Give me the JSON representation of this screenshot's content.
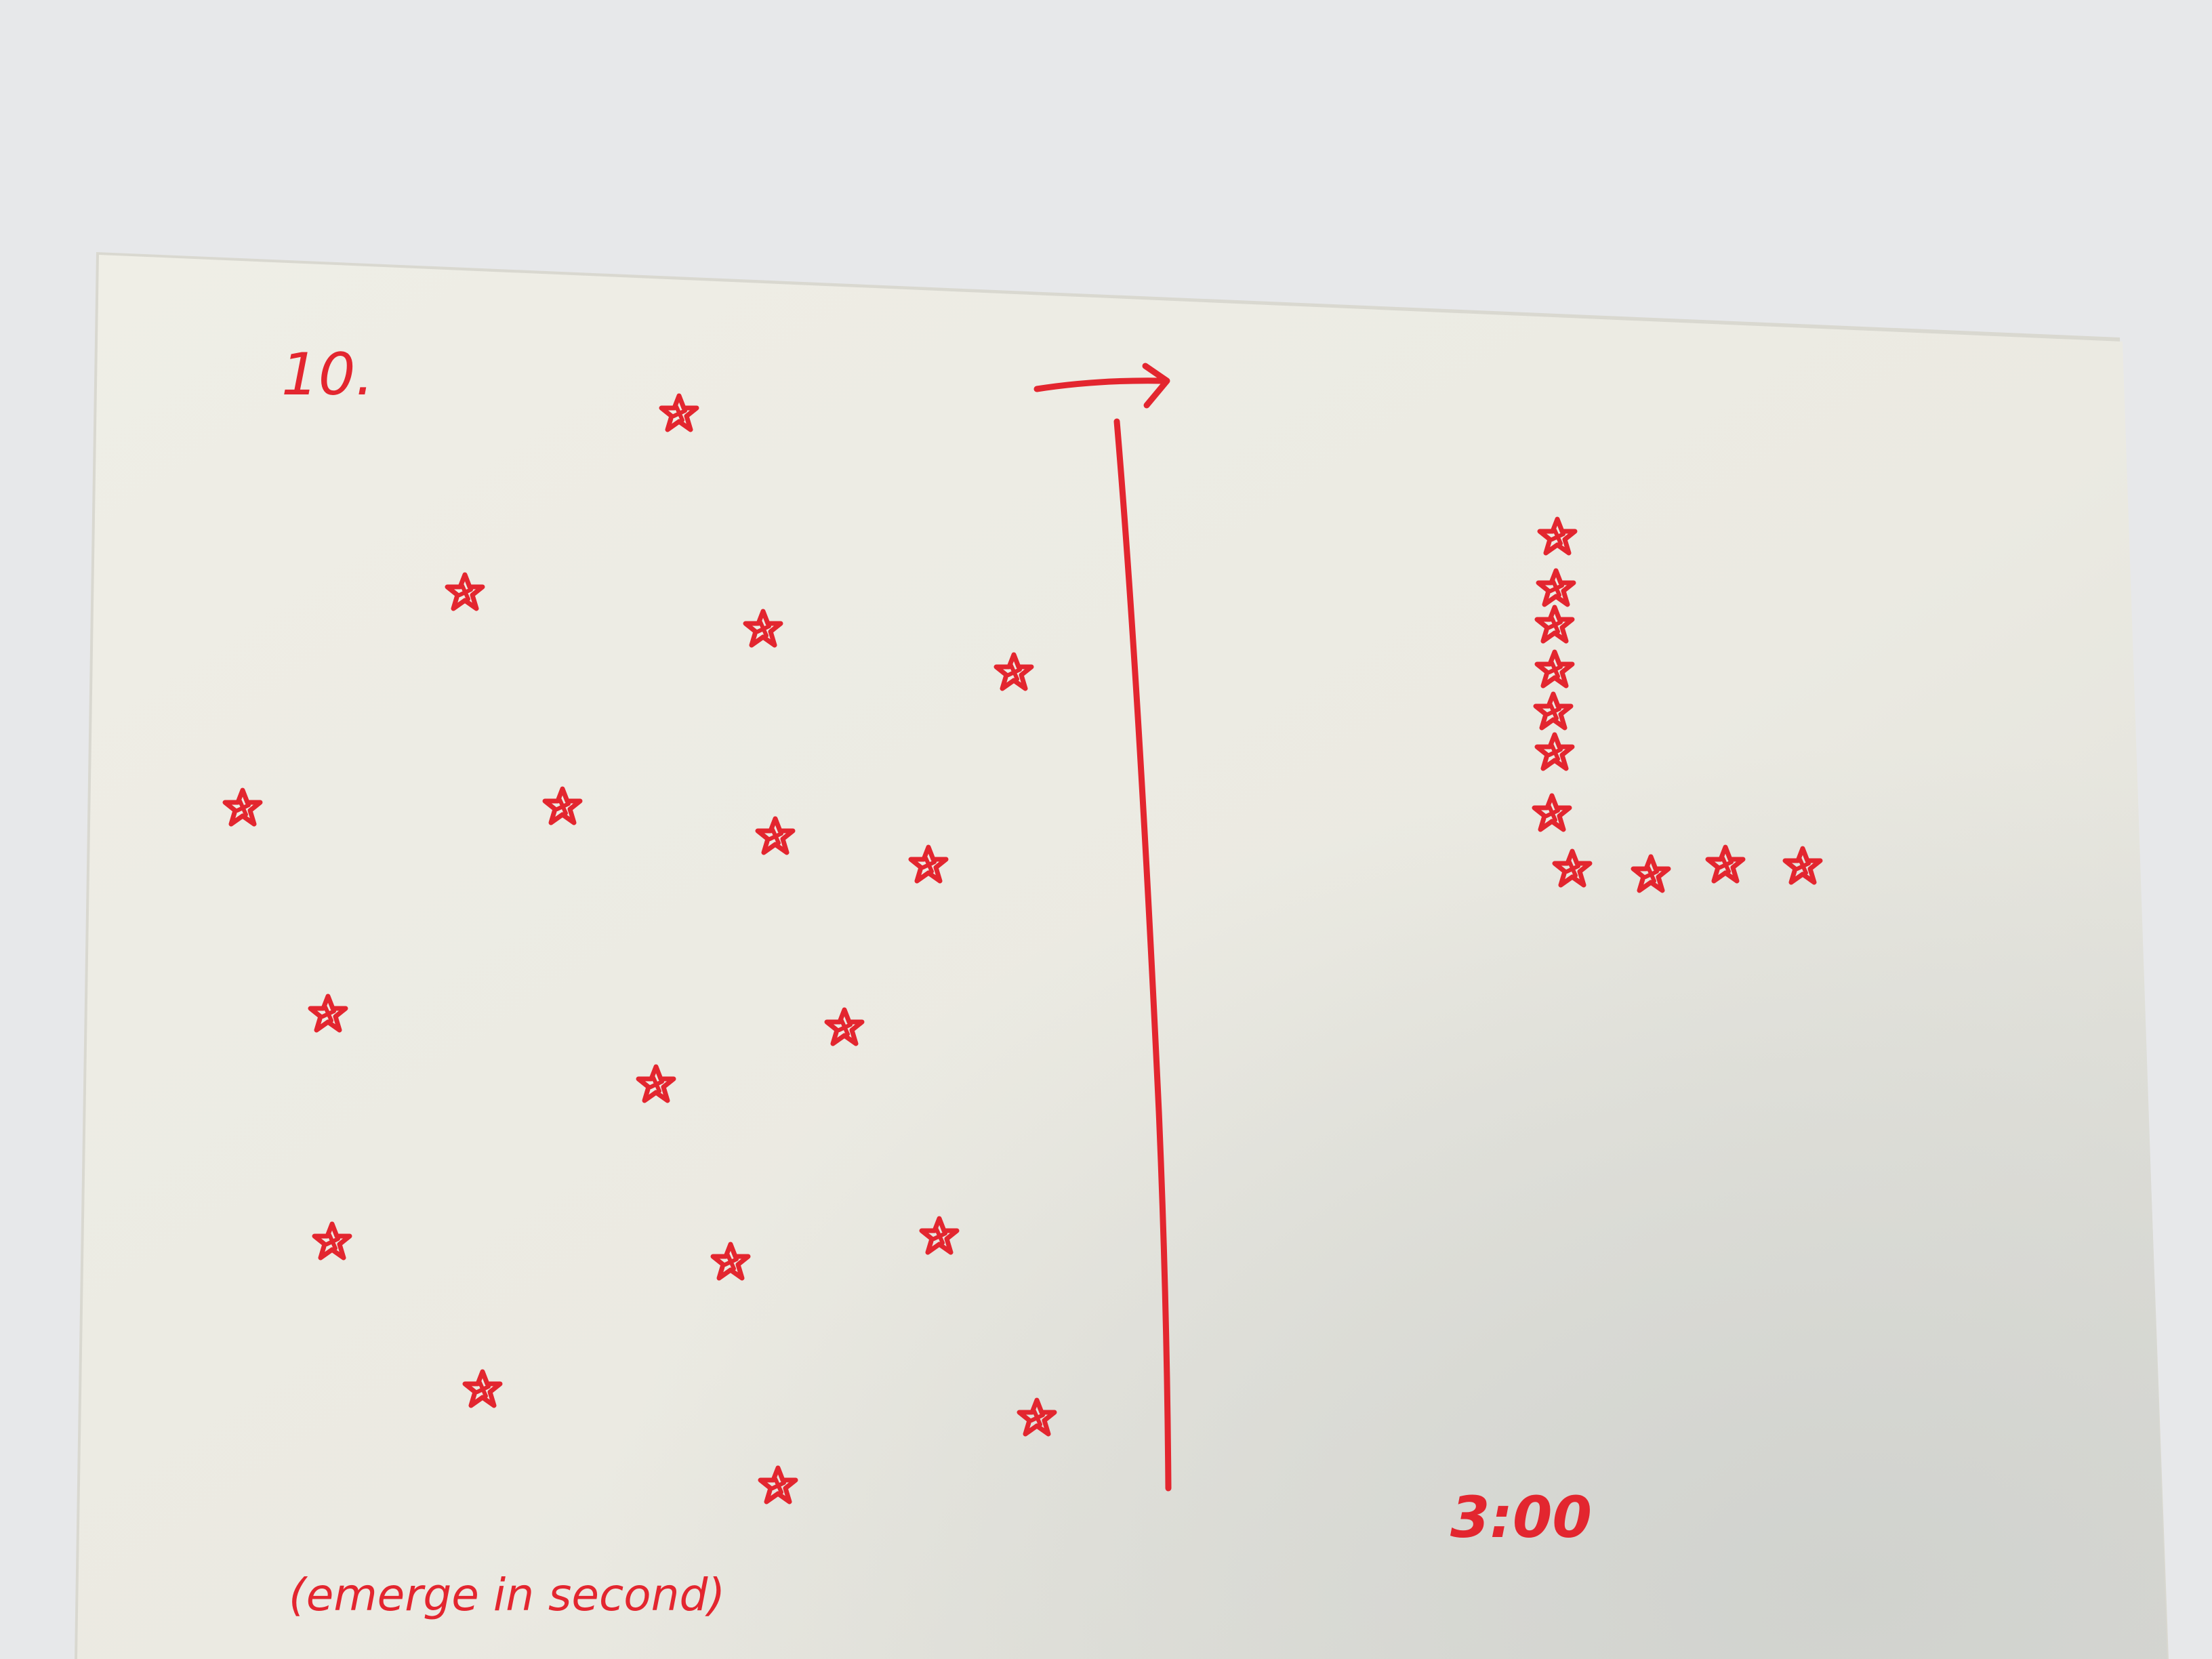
{
  "photo": {
    "subject": "hand-drawn sketch on paper",
    "ink_color": "#e3262f",
    "paper_color": "#ecebe4",
    "background_color": "#e7e8ea"
  },
  "sketch": {
    "number_label": "10.",
    "time_label": "3:00",
    "caption": "(emerge in second)",
    "arrow_icon": "right-arrow-icon",
    "star_icon": "star-icon"
  }
}
